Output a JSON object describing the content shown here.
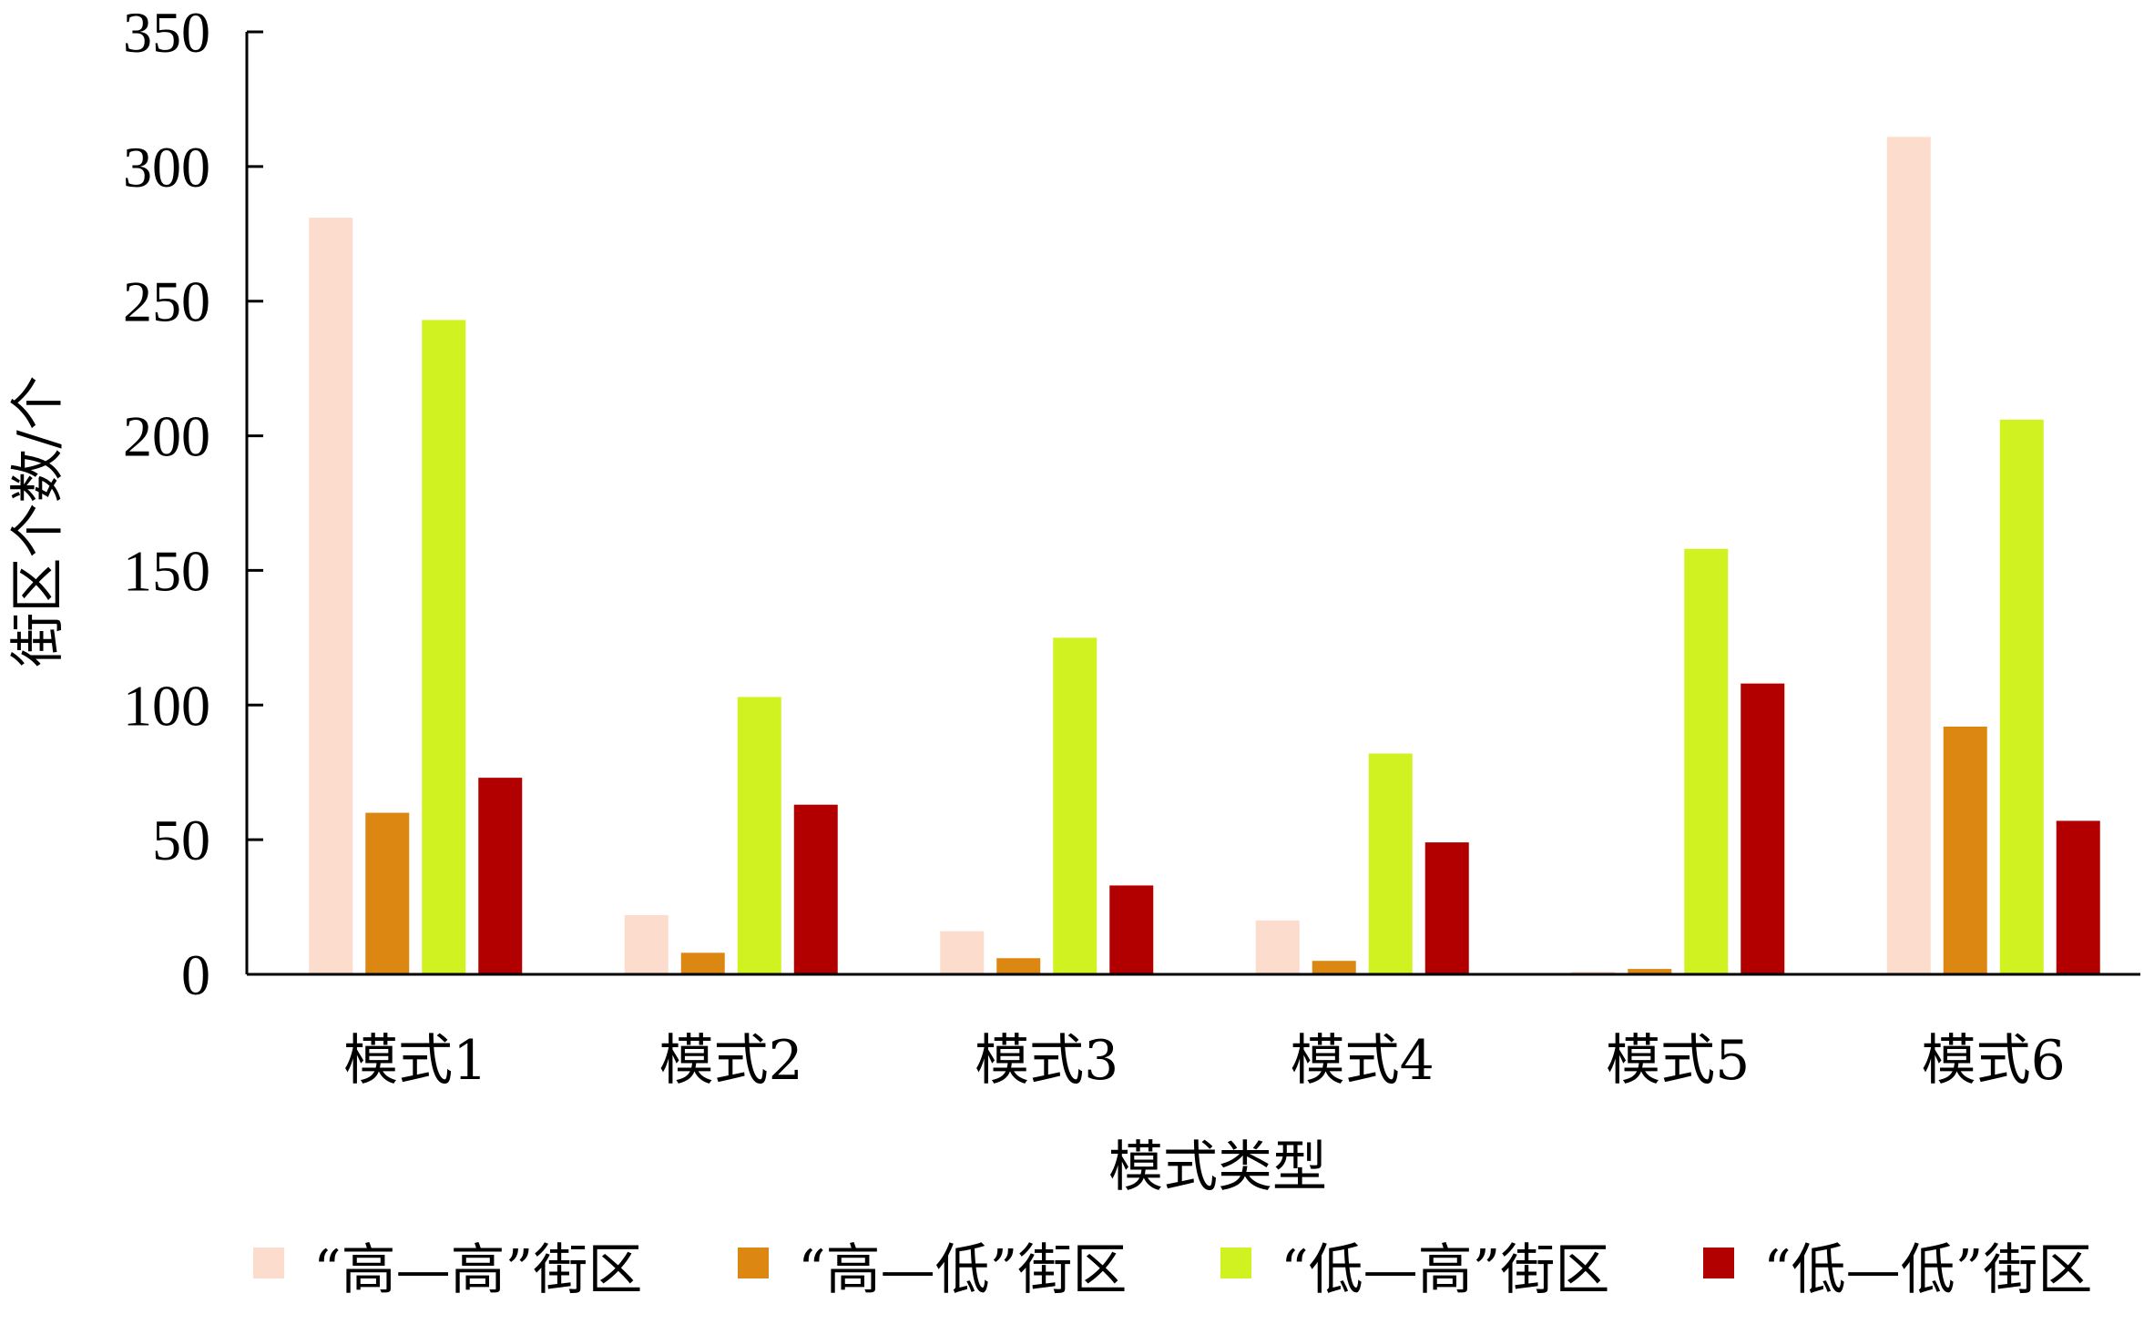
{
  "chart_data": {
    "type": "bar",
    "title": "",
    "xlabel": "模式类型",
    "ylabel": "街区个数/个",
    "ylim": [
      0,
      350
    ],
    "yticks": [
      0,
      50,
      100,
      150,
      200,
      250,
      300,
      350
    ],
    "categories": [
      "模式1",
      "模式2",
      "模式3",
      "模式4",
      "模式5",
      "模式6"
    ],
    "series": [
      {
        "name": "“高—高”街区",
        "color": "#fcdccc",
        "values": [
          281,
          22,
          16,
          20,
          1,
          311
        ]
      },
      {
        "name": "“高—低”街区",
        "color": "#dd8713",
        "values": [
          60,
          8,
          6,
          5,
          2,
          92
        ]
      },
      {
        "name": "“低—高”街区",
        "color": "#d1f221",
        "values": [
          243,
          103,
          125,
          82,
          158,
          206
        ]
      },
      {
        "name": "“低—低”街区",
        "color": "#b20000",
        "values": [
          73,
          63,
          33,
          49,
          108,
          57
        ]
      }
    ],
    "grid": false,
    "legend_position": "bottom"
  }
}
